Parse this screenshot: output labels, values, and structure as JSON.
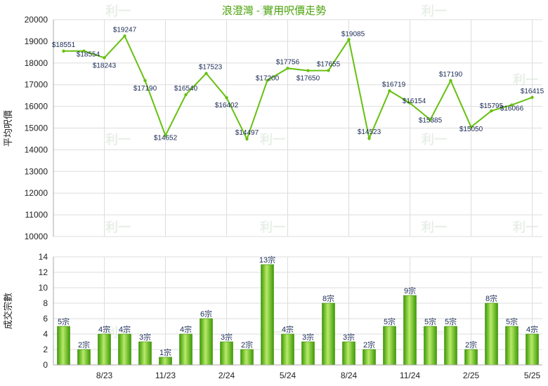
{
  "title": "浪澄灣 - 實用呎價走勢",
  "watermark": "利一",
  "colors": {
    "title": "#4aa30a",
    "line": "#66c010",
    "bar_light": "#b8ea6a",
    "bar_dark": "#3e9a06",
    "grid": "#dddddd"
  },
  "chart_data": [
    {
      "type": "line",
      "ylabel": "平均呎價",
      "ylim": [
        10000,
        20000
      ],
      "yticks": [
        10000,
        11000,
        12000,
        13000,
        14000,
        15000,
        16000,
        17000,
        18000,
        19000,
        20000
      ],
      "values": [
        18551,
        18554,
        18243,
        19247,
        17190,
        14652,
        16540,
        17523,
        16402,
        14497,
        17200,
        17756,
        17650,
        17655,
        19085,
        14523,
        16719,
        16154,
        15385,
        17190,
        15050,
        15795,
        16066,
        16415
      ],
      "labels": [
        "$18551",
        "$18554",
        "$18243",
        "$19247",
        "$17190",
        "$14652",
        "$16540",
        "$17523",
        "$16402",
        "$14497",
        "$17200",
        "$17756",
        "$17650",
        "$17655",
        "$19085",
        "$14523",
        "$16719",
        "$16154",
        "$15385",
        "$17190",
        "$15050",
        "$15795",
        "$16066",
        "$16415"
      ]
    },
    {
      "type": "bar",
      "ylabel": "成交宗數",
      "ylim": [
        0,
        14
      ],
      "yticks": [
        0,
        2,
        4,
        6,
        8,
        10,
        12,
        14
      ],
      "values": [
        5,
        2,
        4,
        4,
        3,
        1,
        4,
        6,
        3,
        2,
        13,
        4,
        3,
        8,
        3,
        2,
        5,
        9,
        5,
        5,
        2,
        8,
        5,
        4
      ],
      "labels": [
        "5宗",
        "2宗",
        "4宗",
        "4宗",
        "3宗",
        "1宗",
        "4宗",
        "6宗",
        "3宗",
        "2宗",
        "13宗",
        "4宗",
        "3宗",
        "8宗",
        "3宗",
        "2宗",
        "5宗",
        "9宗",
        "5宗",
        "5宗",
        "2宗",
        "8宗",
        "5宗",
        "4宗"
      ],
      "xticks": [
        {
          "index": 2,
          "label": "8/23"
        },
        {
          "index": 5,
          "label": "11/23"
        },
        {
          "index": 8,
          "label": "2/24"
        },
        {
          "index": 11,
          "label": "5/24"
        },
        {
          "index": 14,
          "label": "8/24"
        },
        {
          "index": 17,
          "label": "11/24"
        },
        {
          "index": 20,
          "label": "2/25"
        },
        {
          "index": 23,
          "label": "5/25"
        }
      ]
    }
  ]
}
